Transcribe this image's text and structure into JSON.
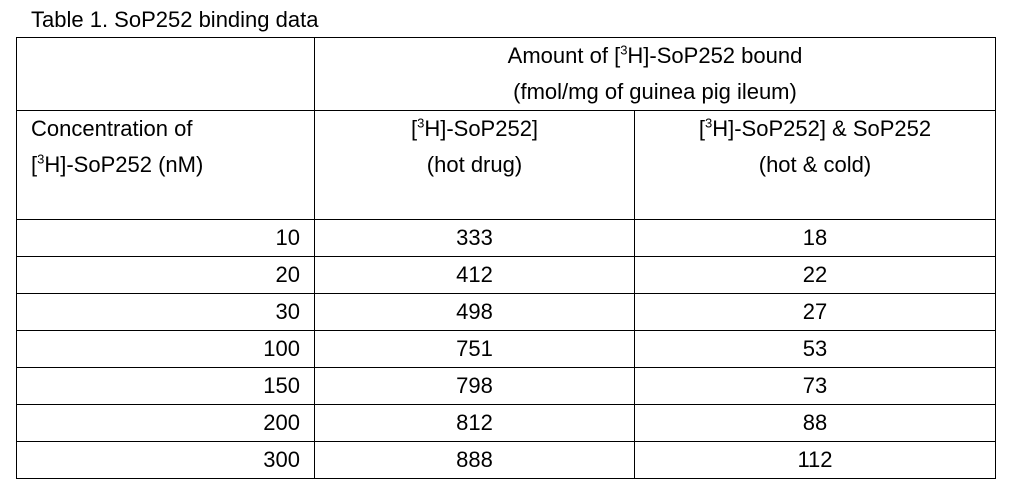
{
  "caption": "Table 1. SoP252 binding data",
  "header": {
    "group_line1_pre": "Amount of [",
    "group_line1_sup": "3",
    "group_line1_post": "H]-SoP252 bound",
    "group_line2": "(fmol/mg of guinea pig ileum)",
    "conc_line1": "Concentration of",
    "conc_line2_pre": "[",
    "conc_line2_sup": "3",
    "conc_line2_post": "H]-SoP252 (nM)",
    "hot_line1_pre": "[",
    "hot_line1_sup": "3",
    "hot_line1_post": "H]-SoP252]",
    "hot_line2": "(hot drug)",
    "cold_line1_pre": "[",
    "cold_line1_sup": "3",
    "cold_line1_post": "H]-SoP252] & SoP252",
    "cold_line2": "(hot & cold)"
  },
  "rows": [
    {
      "conc": "10",
      "hot": "333",
      "hot_cold": "18"
    },
    {
      "conc": "20",
      "hot": "412",
      "hot_cold": "22"
    },
    {
      "conc": "30",
      "hot": "498",
      "hot_cold": "27"
    },
    {
      "conc": "100",
      "hot": "751",
      "hot_cold": "53"
    },
    {
      "conc": "150",
      "hot": "798",
      "hot_cold": "73"
    },
    {
      "conc": "200",
      "hot": "812",
      "hot_cold": "88"
    },
    {
      "conc": "300",
      "hot": "888",
      "hot_cold": "112"
    }
  ]
}
